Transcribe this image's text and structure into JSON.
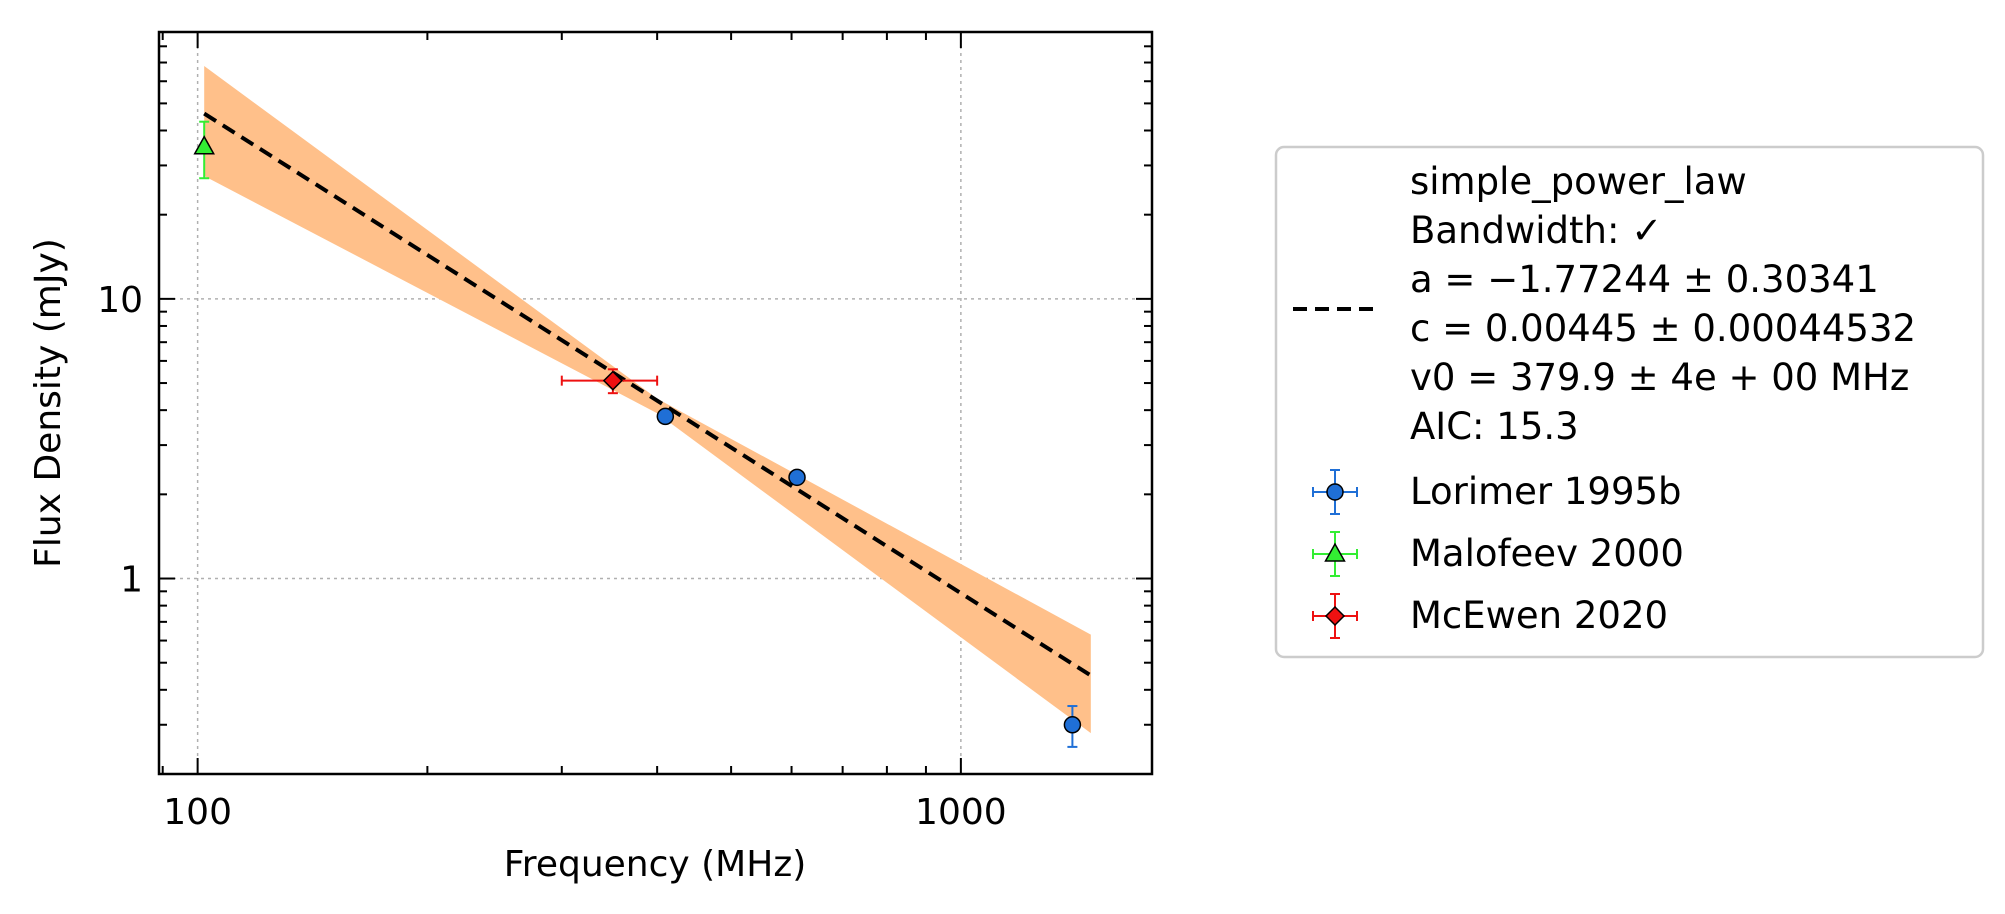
{
  "chart_data": {
    "type": "scatter",
    "title": "",
    "xlabel": "Frequency (MHz)",
    "ylabel": "Flux Density (mJy)",
    "xscale": "log",
    "yscale": "log",
    "xlim": [
      89,
      1780
    ],
    "ylim": [
      0.2,
      90
    ],
    "x_ticks": [
      {
        "value": 100,
        "label": "100"
      },
      {
        "value": 1000,
        "label": "1000"
      }
    ],
    "y_ticks": [
      {
        "value": 1,
        "label": "1"
      },
      {
        "value": 10,
        "label": "10"
      }
    ],
    "grid": true,
    "legend_position": "outside-right",
    "fit": {
      "model": "simple_power_law",
      "lines": [
        "simple_power_law",
        "Bandwidth: ✓",
        "a = −1.77244 ± 0.30341",
        "c = 0.00445 ± 0.00044532",
        "v0 = 379.9 ± 4e + 00 MHz",
        "AIC: 15.3"
      ],
      "x_range": [
        102,
        1480
      ],
      "curve_points": [
        {
          "x": 102,
          "y": 46.0
        },
        {
          "x": 1480,
          "y": 0.45
        }
      ],
      "band_upper": [
        {
          "x": 102,
          "y": 68.0
        },
        {
          "x": 400,
          "y": 4.4
        },
        {
          "x": 1480,
          "y": 0.63
        }
      ],
      "band_lower": [
        {
          "x": 102,
          "y": 27.5
        },
        {
          "x": 400,
          "y": 3.9
        },
        {
          "x": 1480,
          "y": 0.28
        }
      ],
      "line_color": "#000000",
      "band_color": "#ffc08a"
    },
    "series": [
      {
        "name": "Lorimer 1995b",
        "marker": "circle",
        "color": "#1f6fd6",
        "points": [
          {
            "x": 410,
            "y": 3.8,
            "yerr_low": 0.06,
            "yerr_high": 0.06
          },
          {
            "x": 610,
            "y": 2.3,
            "yerr_low": 0.04,
            "yerr_high": 0.04
          },
          {
            "x": 1400,
            "y": 0.3,
            "yerr_low": 0.05,
            "yerr_high": 0.05
          }
        ]
      },
      {
        "name": "Malofeev 2000",
        "marker": "triangle",
        "color": "#33ee33",
        "points": [
          {
            "x": 102,
            "y": 35,
            "yerr_low": 8,
            "yerr_high": 8
          }
        ]
      },
      {
        "name": "McEwen 2020",
        "marker": "diamond",
        "color": "#ee1111",
        "points": [
          {
            "x": 350,
            "y": 5.1,
            "yerr_low": 0.5,
            "yerr_high": 0.5,
            "xerr_low": 50,
            "xerr_high": 50
          }
        ]
      }
    ]
  }
}
